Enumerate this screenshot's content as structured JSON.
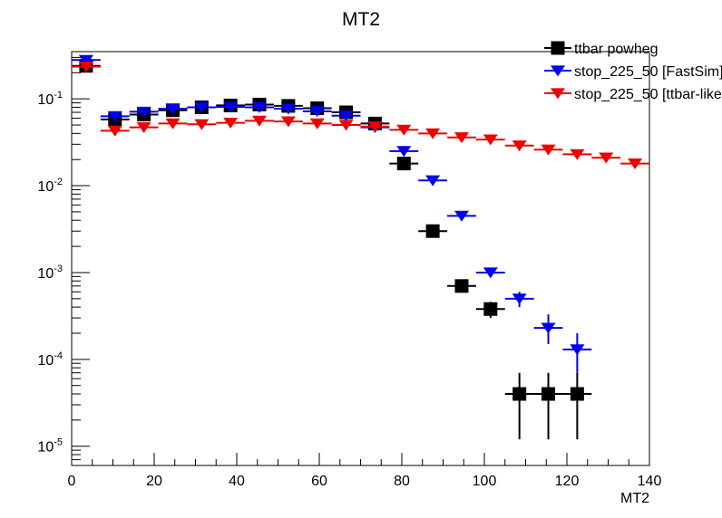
{
  "chart_data": {
    "type": "scatter",
    "title": "MT2",
    "xlabel": "MT2",
    "ylabel": "",
    "xlim": [
      0,
      140
    ],
    "ylim": [
      6e-06,
      0.35
    ],
    "yscale": "log",
    "bin_width": 7,
    "x_ticks": [
      "0",
      "20",
      "40",
      "60",
      "80",
      "100",
      "120",
      "140"
    ],
    "y_ticks": [
      {
        "base": "10",
        "exp": "-5",
        "value": 1e-05
      },
      {
        "base": "10",
        "exp": "-4",
        "value": 0.0001
      },
      {
        "base": "10",
        "exp": "-3",
        "value": 0.001
      },
      {
        "base": "10",
        "exp": "-2",
        "value": 0.01
      },
      {
        "base": "10",
        "exp": "-1",
        "value": 0.1
      }
    ],
    "legend_position": "top-right",
    "series": [
      {
        "name": "ttbar powheg",
        "marker": "square",
        "color": "#000000",
        "x": [
          3.5,
          10.5,
          17.5,
          24.5,
          31.5,
          38.5,
          45.5,
          52.5,
          59.5,
          66.5,
          73.5,
          80.5,
          87.5,
          94.5,
          101.5,
          108.5,
          115.5,
          122.5
        ],
        "y": [
          0.24,
          0.058,
          0.066,
          0.074,
          0.08,
          0.084,
          0.086,
          0.083,
          0.078,
          0.07,
          0.052,
          0.018,
          0.003,
          0.0007,
          0.00038,
          4e-05,
          4e-05,
          4e-05
        ],
        "yerr_low": [
          0,
          0,
          0,
          0,
          0,
          0,
          0,
          0,
          0,
          0,
          0,
          0.001,
          0.0003,
          0.0001,
          8e-05,
          2.8e-05,
          2.8e-05,
          2.8e-05
        ],
        "yerr_high": [
          0,
          0,
          0,
          0,
          0,
          0,
          0,
          0,
          0,
          0,
          0,
          0.001,
          0.0003,
          0.0001,
          8e-05,
          3e-05,
          3e-05,
          3e-05
        ]
      },
      {
        "name": "stop_225_50 [FastSim]",
        "marker": "triangle-down",
        "color": "#0000ee",
        "x": [
          3.5,
          10.5,
          17.5,
          24.5,
          31.5,
          38.5,
          45.5,
          52.5,
          59.5,
          66.5,
          73.5,
          80.5,
          87.5,
          94.5,
          101.5,
          108.5,
          115.5,
          122.5
        ],
        "y": [
          0.28,
          0.063,
          0.071,
          0.077,
          0.08,
          0.081,
          0.08,
          0.077,
          0.072,
          0.064,
          0.047,
          0.025,
          0.0115,
          0.0045,
          0.001,
          0.0005,
          0.00023,
          0.00013
        ],
        "yerr_low": [
          0,
          0,
          0,
          0,
          0,
          0,
          0,
          0,
          0,
          0,
          0,
          0.001,
          0.0006,
          0.0003,
          0.00012,
          0.0001,
          8e-05,
          6e-05
        ],
        "yerr_high": [
          0,
          0,
          0,
          0,
          0,
          0,
          0,
          0,
          0,
          0,
          0,
          0.001,
          0.0006,
          0.0003,
          0.00012,
          0.0001,
          0.0001,
          7e-05
        ]
      },
      {
        "name": "stop_225_50 [ttbar-like]",
        "marker": "triangle-down",
        "color": "#ee0000",
        "x": [
          3.5,
          10.5,
          17.5,
          24.5,
          31.5,
          38.5,
          45.5,
          52.5,
          59.5,
          66.5,
          73.5,
          80.5,
          87.5,
          94.5,
          101.5,
          108.5,
          115.5,
          122.5,
          129.5,
          136.5
        ],
        "y": [
          0.235,
          0.043,
          0.047,
          0.052,
          0.051,
          0.053,
          0.056,
          0.055,
          0.052,
          0.05,
          0.048,
          0.044,
          0.04,
          0.036,
          0.034,
          0.029,
          0.026,
          0.023,
          0.021,
          0.018
        ],
        "yerr_low": [
          0,
          0,
          0,
          0,
          0,
          0,
          0,
          0,
          0,
          0,
          0,
          0,
          0,
          0,
          0,
          0,
          0,
          0,
          0,
          0
        ],
        "yerr_high": [
          0,
          0,
          0,
          0,
          0,
          0,
          0,
          0,
          0,
          0,
          0,
          0,
          0,
          0,
          0,
          0,
          0,
          0,
          0,
          0
        ]
      }
    ]
  }
}
